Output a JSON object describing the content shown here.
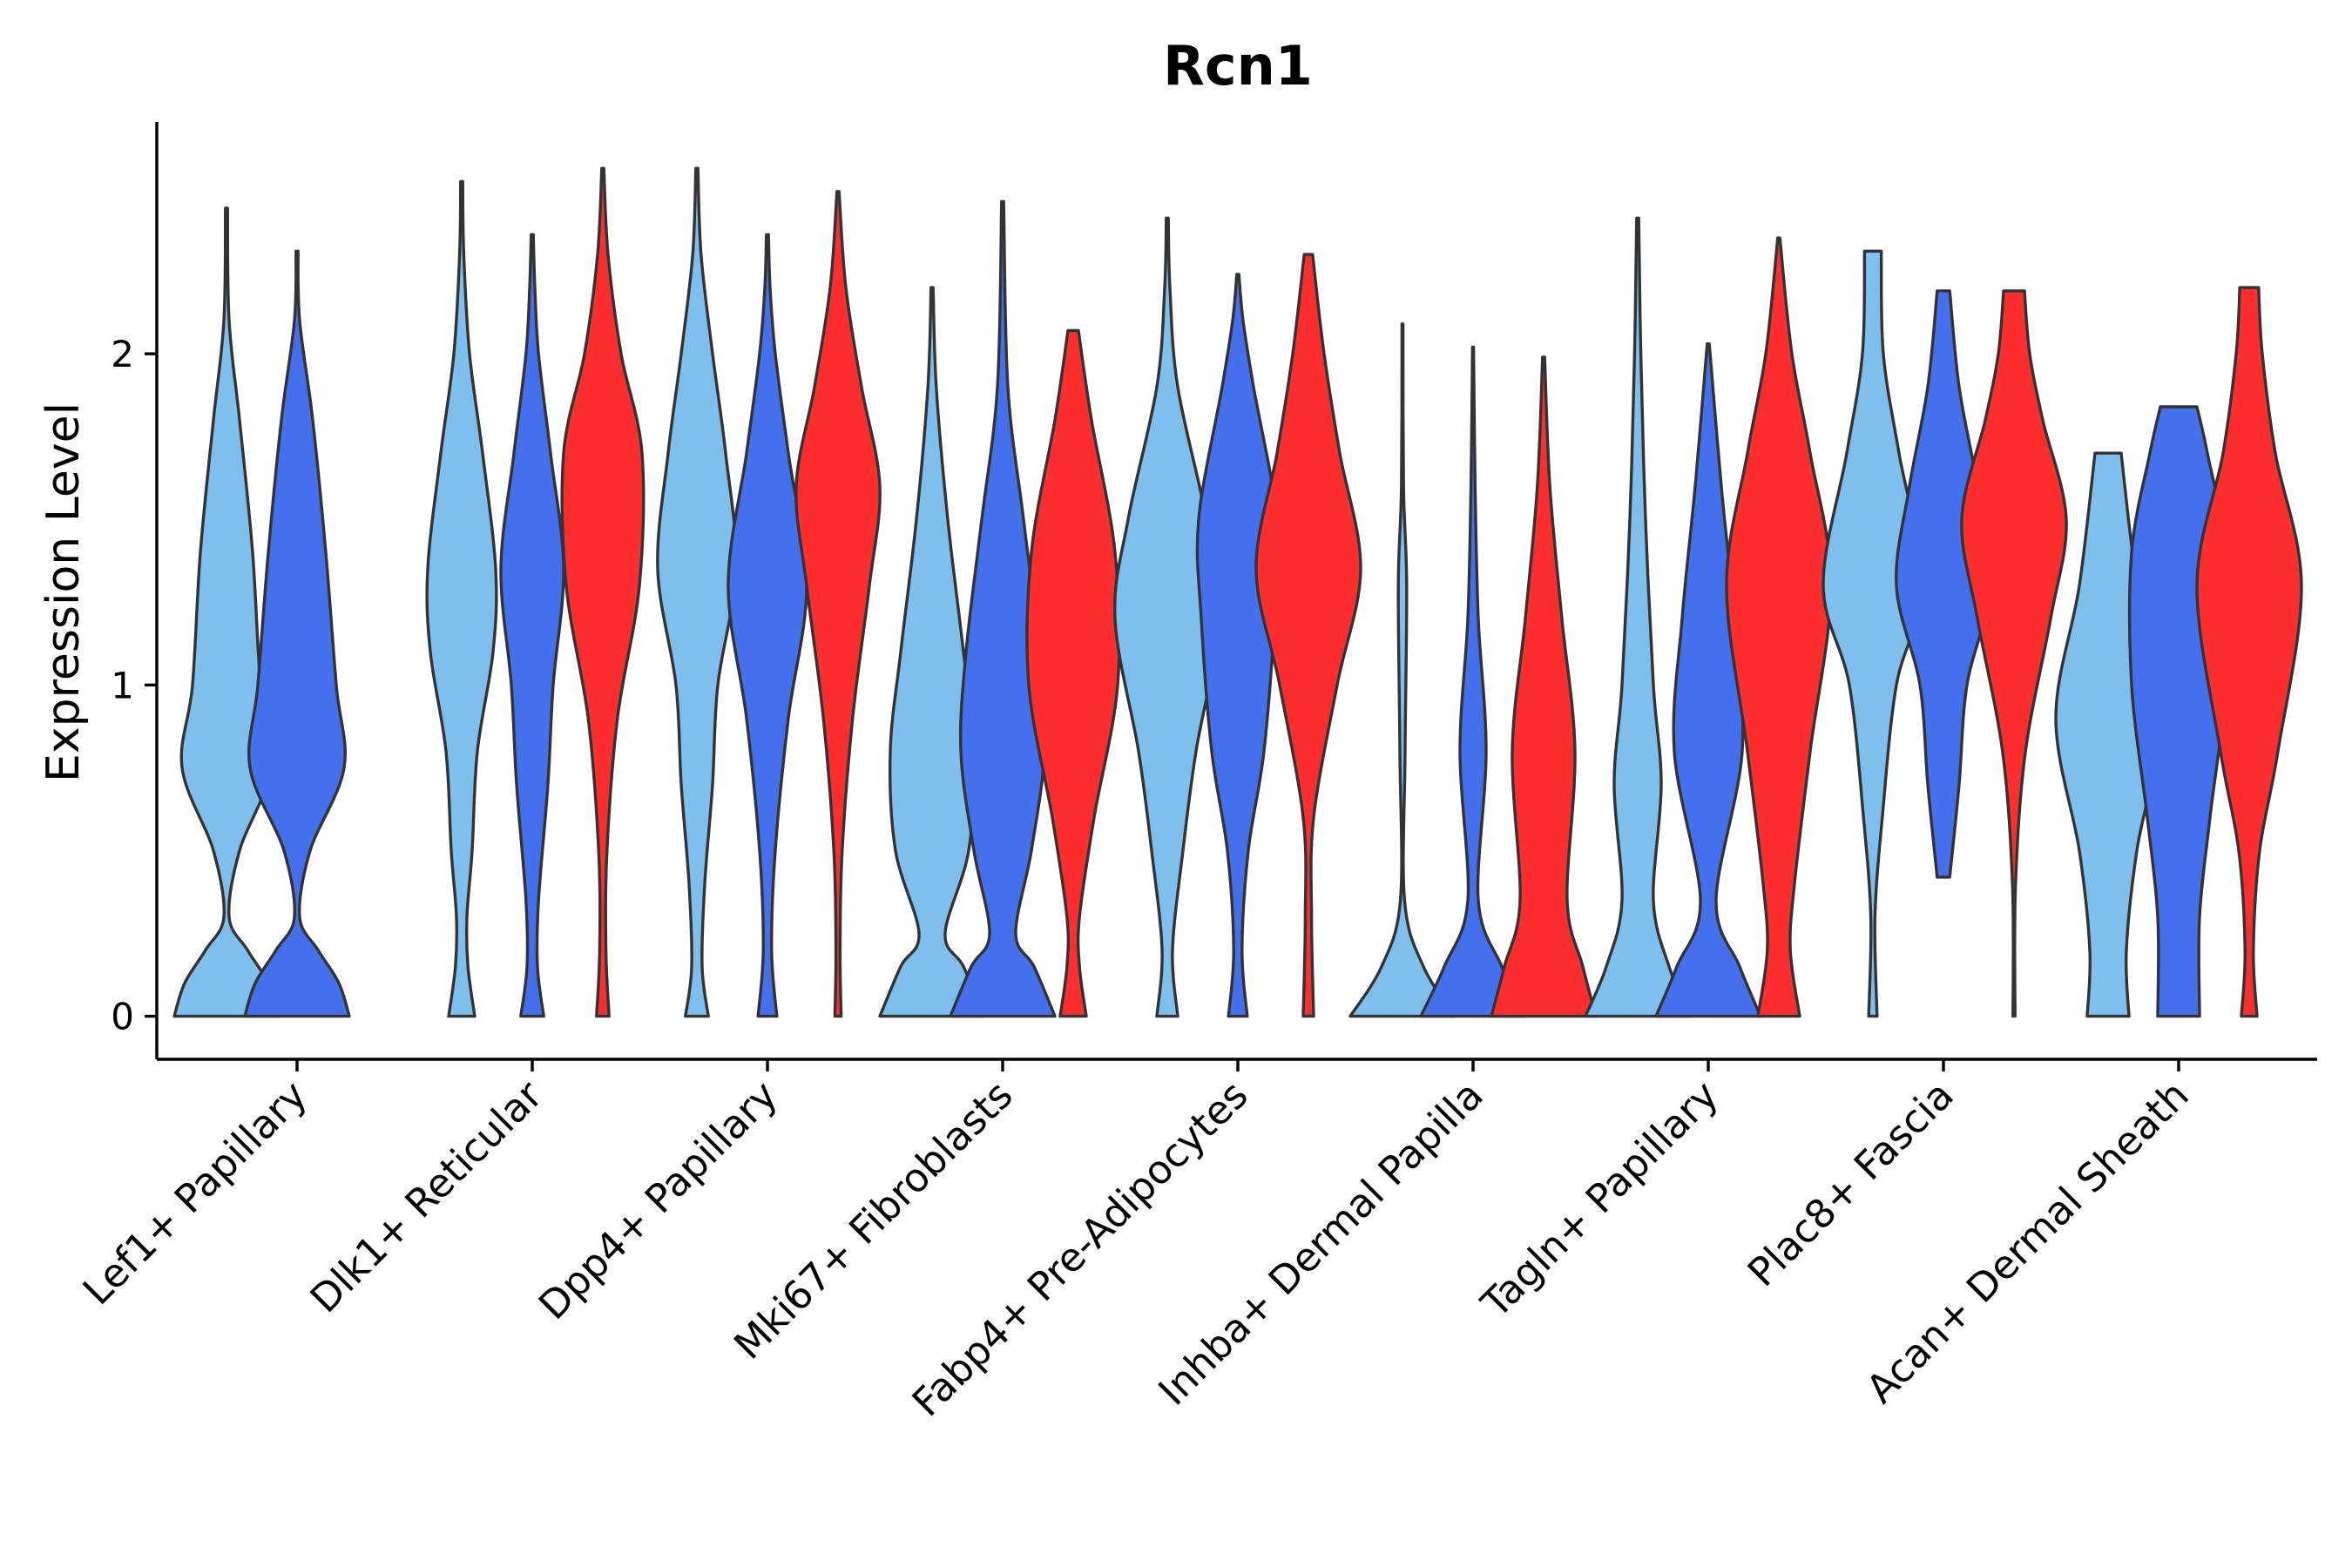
{
  "chart_data": {
    "type": "violin",
    "title": "Rcn1",
    "xlabel": "",
    "ylabel": "Expression Level",
    "ylim": [
      -0.13,
      2.7
    ],
    "yticks": [
      0,
      1,
      2
    ],
    "categories": [
      "Lef1+ Papillary",
      "Dlk1+ Reticular",
      "Dpp4+ Papillary",
      "Mki67+ Fibroblasts",
      "Fabp4+ Pre-Adipocytes",
      "Inhba+ Dermal Papilla",
      "Tagln+ Papillary",
      "Plac8+ Fascia",
      "Acan+ Dermal Sheath"
    ],
    "groups": [
      {
        "name": "group 1",
        "color": "#7FBFED"
      },
      {
        "name": "group 2",
        "color": "#4470EE"
      },
      {
        "name": "group 3",
        "color": "#FF2E2E"
      }
    ],
    "violins": [
      {
        "category": 0,
        "group": 0,
        "profile": [
          [
            0,
            1.0
          ],
          [
            0.1,
            0.8
          ],
          [
            0.2,
            0.4
          ],
          [
            0.3,
            0.05
          ],
          [
            0.5,
            0.25
          ],
          [
            0.75,
            0.85
          ],
          [
            1.0,
            0.65
          ],
          [
            1.4,
            0.5
          ],
          [
            1.8,
            0.25
          ],
          [
            2.1,
            0.05
          ],
          [
            2.44,
            0.02
          ]
        ]
      },
      {
        "category": 0,
        "group": 1,
        "profile": [
          [
            0,
            1.0
          ],
          [
            0.1,
            0.8
          ],
          [
            0.2,
            0.4
          ],
          [
            0.3,
            0.05
          ],
          [
            0.5,
            0.25
          ],
          [
            0.75,
            0.9
          ],
          [
            1.0,
            0.75
          ],
          [
            1.4,
            0.55
          ],
          [
            1.8,
            0.3
          ],
          [
            2.1,
            0.05
          ],
          [
            2.31,
            0.02
          ]
        ]
      },
      {
        "category": 1,
        "group": 0,
        "profile": [
          [
            0,
            0.25
          ],
          [
            0.15,
            0.12
          ],
          [
            0.3,
            0.1
          ],
          [
            0.5,
            0.2
          ],
          [
            0.8,
            0.3
          ],
          [
            1.1,
            0.6
          ],
          [
            1.35,
            0.65
          ],
          [
            1.7,
            0.4
          ],
          [
            2.0,
            0.15
          ],
          [
            2.3,
            0.04
          ],
          [
            2.52,
            0.02
          ]
        ]
      },
      {
        "category": 1,
        "group": 1,
        "profile": [
          [
            0,
            0.22
          ],
          [
            0.15,
            0.1
          ],
          [
            0.35,
            0.12
          ],
          [
            0.7,
            0.3
          ],
          [
            1.0,
            0.4
          ],
          [
            1.35,
            0.6
          ],
          [
            1.7,
            0.35
          ],
          [
            2.0,
            0.12
          ],
          [
            2.2,
            0.05
          ],
          [
            2.36,
            0.02
          ]
        ]
      },
      {
        "category": 1,
        "group": 2,
        "profile": [
          [
            0,
            0.12
          ],
          [
            0.2,
            0.06
          ],
          [
            0.5,
            0.08
          ],
          [
            0.9,
            0.28
          ],
          [
            1.3,
            0.7
          ],
          [
            1.7,
            0.75
          ],
          [
            2.0,
            0.35
          ],
          [
            2.3,
            0.1
          ],
          [
            2.56,
            0.02
          ]
        ]
      },
      {
        "category": 2,
        "group": 0,
        "profile": [
          [
            0,
            0.22
          ],
          [
            0.15,
            0.1
          ],
          [
            0.4,
            0.15
          ],
          [
            0.7,
            0.3
          ],
          [
            1.0,
            0.4
          ],
          [
            1.35,
            0.75
          ],
          [
            1.7,
            0.55
          ],
          [
            2.0,
            0.3
          ],
          [
            2.3,
            0.08
          ],
          [
            2.56,
            0.02
          ]
        ]
      },
      {
        "category": 2,
        "group": 1,
        "profile": [
          [
            0,
            0.18
          ],
          [
            0.2,
            0.08
          ],
          [
            0.5,
            0.15
          ],
          [
            0.9,
            0.4
          ],
          [
            1.3,
            0.75
          ],
          [
            1.7,
            0.4
          ],
          [
            2.0,
            0.15
          ],
          [
            2.2,
            0.05
          ],
          [
            2.36,
            0.02
          ]
        ]
      },
      {
        "category": 2,
        "group": 2,
        "profile": [
          [
            0,
            0.06
          ],
          [
            0.2,
            0.04
          ],
          [
            0.5,
            0.08
          ],
          [
            0.9,
            0.28
          ],
          [
            1.3,
            0.6
          ],
          [
            1.6,
            0.8
          ],
          [
            1.9,
            0.45
          ],
          [
            2.2,
            0.15
          ],
          [
            2.49,
            0.02
          ]
        ]
      },
      {
        "category": 3,
        "group": 0,
        "profile": [
          [
            0,
            1.0
          ],
          [
            0.15,
            0.6
          ],
          [
            0.25,
            0.25
          ],
          [
            0.5,
            0.7
          ],
          [
            0.8,
            0.8
          ],
          [
            1.1,
            0.6
          ],
          [
            1.5,
            0.3
          ],
          [
            1.9,
            0.08
          ],
          [
            2.2,
            0.02
          ]
        ]
      },
      {
        "category": 3,
        "group": 1,
        "profile": [
          [
            0,
            1.0
          ],
          [
            0.15,
            0.6
          ],
          [
            0.25,
            0.25
          ],
          [
            0.5,
            0.55
          ],
          [
            0.8,
            0.8
          ],
          [
            1.1,
            0.7
          ],
          [
            1.5,
            0.4
          ],
          [
            1.9,
            0.1
          ],
          [
            2.46,
            0.02
          ]
        ]
      },
      {
        "category": 3,
        "group": 2,
        "profile": [
          [
            0,
            0.25
          ],
          [
            0.15,
            0.12
          ],
          [
            0.3,
            0.12
          ],
          [
            0.6,
            0.4
          ],
          [
            1.0,
            0.85
          ],
          [
            1.4,
            0.8
          ],
          [
            1.8,
            0.35
          ],
          [
            2.07,
            0.1
          ]
        ]
      },
      {
        "category": 4,
        "group": 0,
        "profile": [
          [
            0,
            0.2
          ],
          [
            0.2,
            0.1
          ],
          [
            0.5,
            0.3
          ],
          [
            0.8,
            0.55
          ],
          [
            1.2,
            1.0
          ],
          [
            1.5,
            0.75
          ],
          [
            1.9,
            0.2
          ],
          [
            2.2,
            0.05
          ],
          [
            2.41,
            0.02
          ]
        ]
      },
      {
        "category": 4,
        "group": 1,
        "profile": [
          [
            0,
            0.18
          ],
          [
            0.2,
            0.08
          ],
          [
            0.5,
            0.2
          ],
          [
            0.8,
            0.5
          ],
          [
            1.2,
            0.7
          ],
          [
            1.5,
            0.75
          ],
          [
            1.9,
            0.3
          ],
          [
            2.1,
            0.1
          ],
          [
            2.24,
            0.02
          ]
        ]
      },
      {
        "category": 4,
        "group": 2,
        "profile": [
          [
            0,
            0.1
          ],
          [
            0.3,
            0.06
          ],
          [
            0.6,
            0.1
          ],
          [
            1.0,
            0.55
          ],
          [
            1.35,
            1.0
          ],
          [
            1.7,
            0.6
          ],
          [
            2.0,
            0.3
          ],
          [
            2.3,
            0.08
          ]
        ]
      },
      {
        "category": 5,
        "group": 0,
        "profile": [
          [
            0,
            1.0
          ],
          [
            0.15,
            0.4
          ],
          [
            0.35,
            0.04
          ],
          [
            0.8,
            0.05
          ],
          [
            1.3,
            0.08
          ],
          [
            1.6,
            0.02
          ],
          [
            2.09,
            0.01
          ]
        ]
      },
      {
        "category": 5,
        "group": 1,
        "profile": [
          [
            0,
            1.0
          ],
          [
            0.15,
            0.55
          ],
          [
            0.35,
            0.1
          ],
          [
            0.8,
            0.25
          ],
          [
            1.2,
            0.1
          ],
          [
            1.6,
            0.04
          ],
          [
            2.02,
            0.01
          ]
        ]
      },
      {
        "category": 5,
        "group": 2,
        "profile": [
          [
            0,
            1.0
          ],
          [
            0.15,
            0.75
          ],
          [
            0.35,
            0.45
          ],
          [
            0.8,
            0.6
          ],
          [
            1.2,
            0.35
          ],
          [
            1.6,
            0.12
          ],
          [
            1.99,
            0.02
          ]
        ]
      },
      {
        "category": 6,
        "group": 0,
        "profile": [
          [
            0,
            1.0
          ],
          [
            0.15,
            0.6
          ],
          [
            0.35,
            0.3
          ],
          [
            0.7,
            0.45
          ],
          [
            1.0,
            0.3
          ],
          [
            1.5,
            0.15
          ],
          [
            2.0,
            0.06
          ],
          [
            2.41,
            0.02
          ]
        ]
      },
      {
        "category": 6,
        "group": 1,
        "profile": [
          [
            0,
            1.0
          ],
          [
            0.15,
            0.6
          ],
          [
            0.35,
            0.15
          ],
          [
            0.8,
            0.65
          ],
          [
            1.2,
            0.5
          ],
          [
            1.6,
            0.25
          ],
          [
            2.03,
            0.02
          ]
        ]
      },
      {
        "category": 6,
        "group": 2,
        "profile": [
          [
            0,
            0.4
          ],
          [
            0.2,
            0.22
          ],
          [
            0.4,
            0.3
          ],
          [
            0.8,
            0.6
          ],
          [
            1.3,
            1.0
          ],
          [
            1.7,
            0.6
          ],
          [
            2.0,
            0.25
          ],
          [
            2.35,
            0.02
          ]
        ]
      },
      {
        "category": 7,
        "group": 0,
        "profile": [
          [
            0,
            0.08
          ],
          [
            0.3,
            0.04
          ],
          [
            0.6,
            0.18
          ],
          [
            1.0,
            0.45
          ],
          [
            1.3,
            0.95
          ],
          [
            1.7,
            0.5
          ],
          [
            2.0,
            0.2
          ],
          [
            2.31,
            0.16
          ]
        ]
      },
      {
        "category": 7,
        "group": 1,
        "profile": [
          [
            0.42,
            0.12
          ],
          [
            0.7,
            0.3
          ],
          [
            1.0,
            0.45
          ],
          [
            1.3,
            0.9
          ],
          [
            1.6,
            0.65
          ],
          [
            1.9,
            0.3
          ],
          [
            2.19,
            0.12
          ]
        ]
      },
      {
        "category": 7,
        "group": 2,
        "profile": [
          [
            0,
            0.02
          ],
          [
            0.4,
            0.03
          ],
          [
            0.8,
            0.22
          ],
          [
            1.2,
            0.7
          ],
          [
            1.5,
            1.0
          ],
          [
            1.8,
            0.55
          ],
          [
            2.0,
            0.3
          ],
          [
            2.19,
            0.2
          ]
        ]
      },
      {
        "category": 8,
        "group": 0,
        "profile": [
          [
            0,
            0.4
          ],
          [
            0.2,
            0.35
          ],
          [
            0.5,
            0.55
          ],
          [
            0.9,
            1.0
          ],
          [
            1.3,
            0.55
          ],
          [
            1.7,
            0.25
          ]
        ]
      },
      {
        "category": 8,
        "group": 1,
        "profile": [
          [
            0,
            0.4
          ],
          [
            0.3,
            0.4
          ],
          [
            0.6,
            0.6
          ],
          [
            1.0,
            0.9
          ],
          [
            1.4,
            0.9
          ],
          [
            1.7,
            0.55
          ],
          [
            1.84,
            0.35
          ]
        ]
      },
      {
        "category": 8,
        "group": 2,
        "profile": [
          [
            0,
            0.15
          ],
          [
            0.2,
            0.08
          ],
          [
            0.5,
            0.2
          ],
          [
            0.8,
            0.55
          ],
          [
            1.3,
            1.0
          ],
          [
            1.7,
            0.5
          ],
          [
            2.0,
            0.25
          ],
          [
            2.2,
            0.18
          ]
        ]
      }
    ]
  }
}
